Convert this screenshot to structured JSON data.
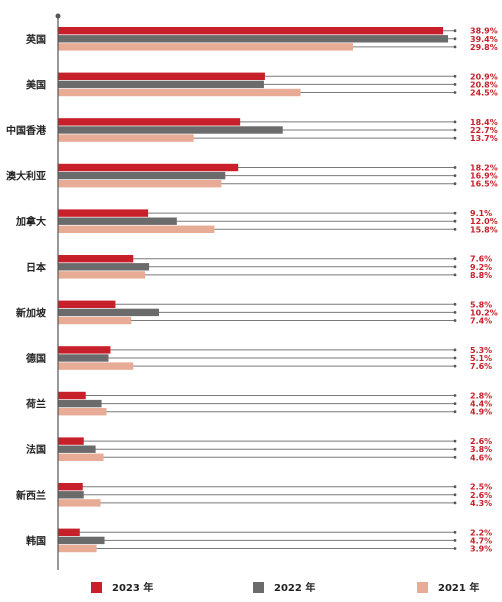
{
  "chart_data": {
    "type": "bar",
    "orientation": "horizontal",
    "categories": [
      "英国",
      "美国",
      "中国香港",
      "澳大利亚",
      "加拿大",
      "日本",
      "新加坡",
      "德国",
      "荷兰",
      "法国",
      "新西兰",
      "韩国"
    ],
    "series": [
      {
        "name": "2023 年",
        "color": "#c8202a",
        "values": [
          38.9,
          20.9,
          18.4,
          18.2,
          9.1,
          7.6,
          5.8,
          5.3,
          2.8,
          2.6,
          2.5,
          2.2
        ],
        "labels": [
          "38.9%",
          "20.9%",
          "18.4%",
          "18.2%",
          "9.1%",
          "7.6%",
          "5.8%",
          "5.3%",
          "2.8%",
          "2.6%",
          "2.5%",
          "2.2%"
        ]
      },
      {
        "name": "2022 年",
        "color": "#6b6b6b",
        "values": [
          39.4,
          20.8,
          22.7,
          16.9,
          12.0,
          9.2,
          10.2,
          5.1,
          4.4,
          3.8,
          2.6,
          4.7
        ],
        "labels": [
          "39.4%",
          "20.8%",
          "22.7%",
          "16.9%",
          "12.0%",
          "9.2%",
          "10.2%",
          "5.1%",
          "4.4%",
          "3.8%",
          "2.6%",
          "4.7%"
        ]
      },
      {
        "name": "2021 年",
        "color": "#e7ab96",
        "values": [
          29.8,
          24.5,
          13.7,
          16.5,
          15.8,
          8.8,
          7.4,
          7.6,
          4.9,
          4.6,
          4.3,
          3.9
        ],
        "labels": [
          "29.8%",
          "24.5%",
          "13.7%",
          "16.5%",
          "15.8%",
          "8.8%",
          "7.4%",
          "7.6%",
          "4.9%",
          "4.6%",
          "4.3%",
          "3.9%"
        ]
      }
    ],
    "xlim": [
      0,
      42
    ],
    "grid": false,
    "legend_position": "bottom"
  }
}
